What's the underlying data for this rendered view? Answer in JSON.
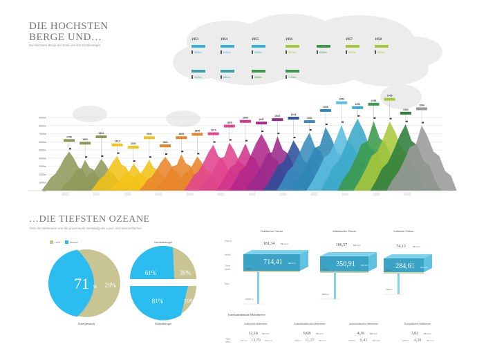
{
  "mountains_section": {
    "title_line1": "DIE HOCHSTEN",
    "title_line2": "BERGE UND…",
    "subtitle": "Die höchsten Berge der Erde und ihre Erstbesteiger"
  },
  "cloud_timeline": [
    {
      "year": "1953",
      "entries": [
        {
          "height": "8848m",
          "color": "#3bb4dc"
        },
        {
          "height": "8125m",
          "color": "#3aa0a8"
        }
      ]
    },
    {
      "year": "1954",
      "entries": [
        {
          "height": "8201m",
          "color": "#3bb4dc"
        },
        {
          "height": "8611m",
          "color": "#3aa0a8"
        }
      ]
    },
    {
      "year": "1955",
      "entries": [
        {
          "height": "8485m",
          "color": "#3bb4dc"
        },
        {
          "height": "8586m",
          "color": "#3a9a4a"
        }
      ]
    },
    {
      "year": "1956",
      "entries": [
        {
          "height": "8516m",
          "color": "#a8c83c"
        },
        {
          "height": "8163m",
          "color": "#3a9a4a"
        }
      ]
    },
    {
      "year": "1956",
      "entries": [
        {
          "height": "8035m",
          "color": "#3a9a4a"
        }
      ]
    },
    {
      "year": "1957",
      "entries": [
        {
          "height": "8051m",
          "color": "#a8c83c"
        }
      ]
    },
    {
      "year": "1958",
      "entries": [
        {
          "height": "8080m",
          "color": "#a8c83c"
        }
      ]
    }
  ],
  "chart_data": [
    {
      "type": "area",
      "ylabel": "",
      "ylim": [
        0,
        9000
      ],
      "y_ticks": [
        "0m",
        "1000m",
        "2000m",
        "3000m",
        "4000m",
        "5000m",
        "6000m",
        "7000m",
        "8000m",
        "9000m"
      ],
      "grid": true,
      "series": [
        {
          "year": "1786",
          "peak_m": 4810,
          "color": "#8f9a5a"
        },
        {
          "year": "1800",
          "peak_m": 3800,
          "color": "#8f9a5a"
        },
        {
          "year": "1804",
          "peak_m": 3900,
          "color": "#8f9a5a"
        },
        {
          "year": "1811",
          "peak_m": 4270,
          "color": "#f2c318"
        },
        {
          "year": "1820",
          "peak_m": 3300,
          "color": "#f2c318"
        },
        {
          "year": "1841",
          "peak_m": 3800,
          "color": "#f2c318"
        },
        {
          "year": "1861",
          "peak_m": 4160,
          "color": "#e8852a"
        },
        {
          "year": "1865",
          "peak_m": 4480,
          "color": "#e8852a"
        },
        {
          "year": "1865",
          "peak_m": 4210,
          "color": "#e8852a"
        },
        {
          "year": "1874",
          "peak_m": 5640,
          "color": "#e0458e"
        },
        {
          "year": "1888",
          "peak_m": 5900,
          "color": "#e0458e"
        },
        {
          "year": "1889",
          "peak_m": 5800,
          "color": "#d2348a"
        },
        {
          "year": "1897",
          "peak_m": 6960,
          "color": "#b0278a"
        },
        {
          "year": "1903",
          "peak_m": 6700,
          "color": "#9a2a8a"
        },
        {
          "year": "1913",
          "peak_m": 6190,
          "color": "#2c4f9a"
        },
        {
          "year": "1931",
          "peak_m": 7130,
          "color": "#3a8dbd"
        },
        {
          "year": "1936",
          "peak_m": 7820,
          "color": "#2f86b5"
        },
        {
          "year": "1950",
          "peak_m": 8091,
          "color": "#5bbde0"
        },
        {
          "year": "1953",
          "peak_m": 8848,
          "color": "#3aa8c8"
        },
        {
          "year": "1955",
          "peak_m": 8586,
          "color": "#3a9a4a"
        },
        {
          "year": "1956",
          "peak_m": 8516,
          "color": "#a8c83c"
        },
        {
          "year": "1960",
          "peak_m": 8167,
          "color": "#2f7d3c"
        },
        {
          "year": "1964",
          "peak_m": 8027,
          "color": "#9a9a9a"
        }
      ]
    },
    {
      "type": "pie",
      "legend": [
        {
          "label": "Land",
          "color": "#c8c493"
        },
        {
          "label": "Wasser",
          "color": "#2bbcf0"
        }
      ],
      "pies": [
        {
          "label": "Erde(gesamt)",
          "water": 71,
          "land": 29
        },
        {
          "label": "Nordhalbkugel",
          "water": 61,
          "land": 39
        },
        {
          "label": "Südhalbkugel",
          "water": 81,
          "land": 19
        }
      ],
      "unit": "%"
    }
  ],
  "oceans_section": {
    "title": "…DIE TIEFSTEN OZEANE",
    "subtitle": "Tiefe der Weltmeere und die prozentuale Verteilung der Land- und Wasserflächen",
    "row_labels": {
      "area": "Fläche",
      "volume": "Inhalt",
      "mean_depth": "Tiefe Mittel",
      "max": "Max"
    },
    "area_unit": "Mio km²",
    "volume_unit": "Mio km³",
    "oceans": [
      {
        "name": "Pazifischer Ozean",
        "area": "181,34",
        "volume": "714,41",
        "mean_depth": "3940 m",
        "max_depth": "11034 m"
      },
      {
        "name": "Atlantischer Ozean",
        "area": "106,57",
        "volume": "350,91",
        "mean_depth": "3293 m",
        "max_depth": "8605 m"
      },
      {
        "name": "Indischer Ozean",
        "area": "74,13",
        "volume": "284,61",
        "mean_depth": "3840 m",
        "max_depth": "7450 m"
      }
    ],
    "seas_title": "Interkontinentale Mittelmeere",
    "seas": [
      {
        "name": "Arktisches Mittelmeer",
        "area": "12,26",
        "mean_depth": "1117 m",
        "volume": "13,70"
      },
      {
        "name": "Australasiatisches Mittelmeer",
        "area": "9,08",
        "mean_depth": "1252 m",
        "volume": "11,37"
      },
      {
        "name": "Amerikanisches Mittelmeer",
        "area": "4,36",
        "mean_depth": "2164 m",
        "volume": "9,43"
      },
      {
        "name": "Europäisches Mittelmeer",
        "area": "3,02",
        "mean_depth": "1450 m",
        "volume": "4,38"
      }
    ]
  }
}
